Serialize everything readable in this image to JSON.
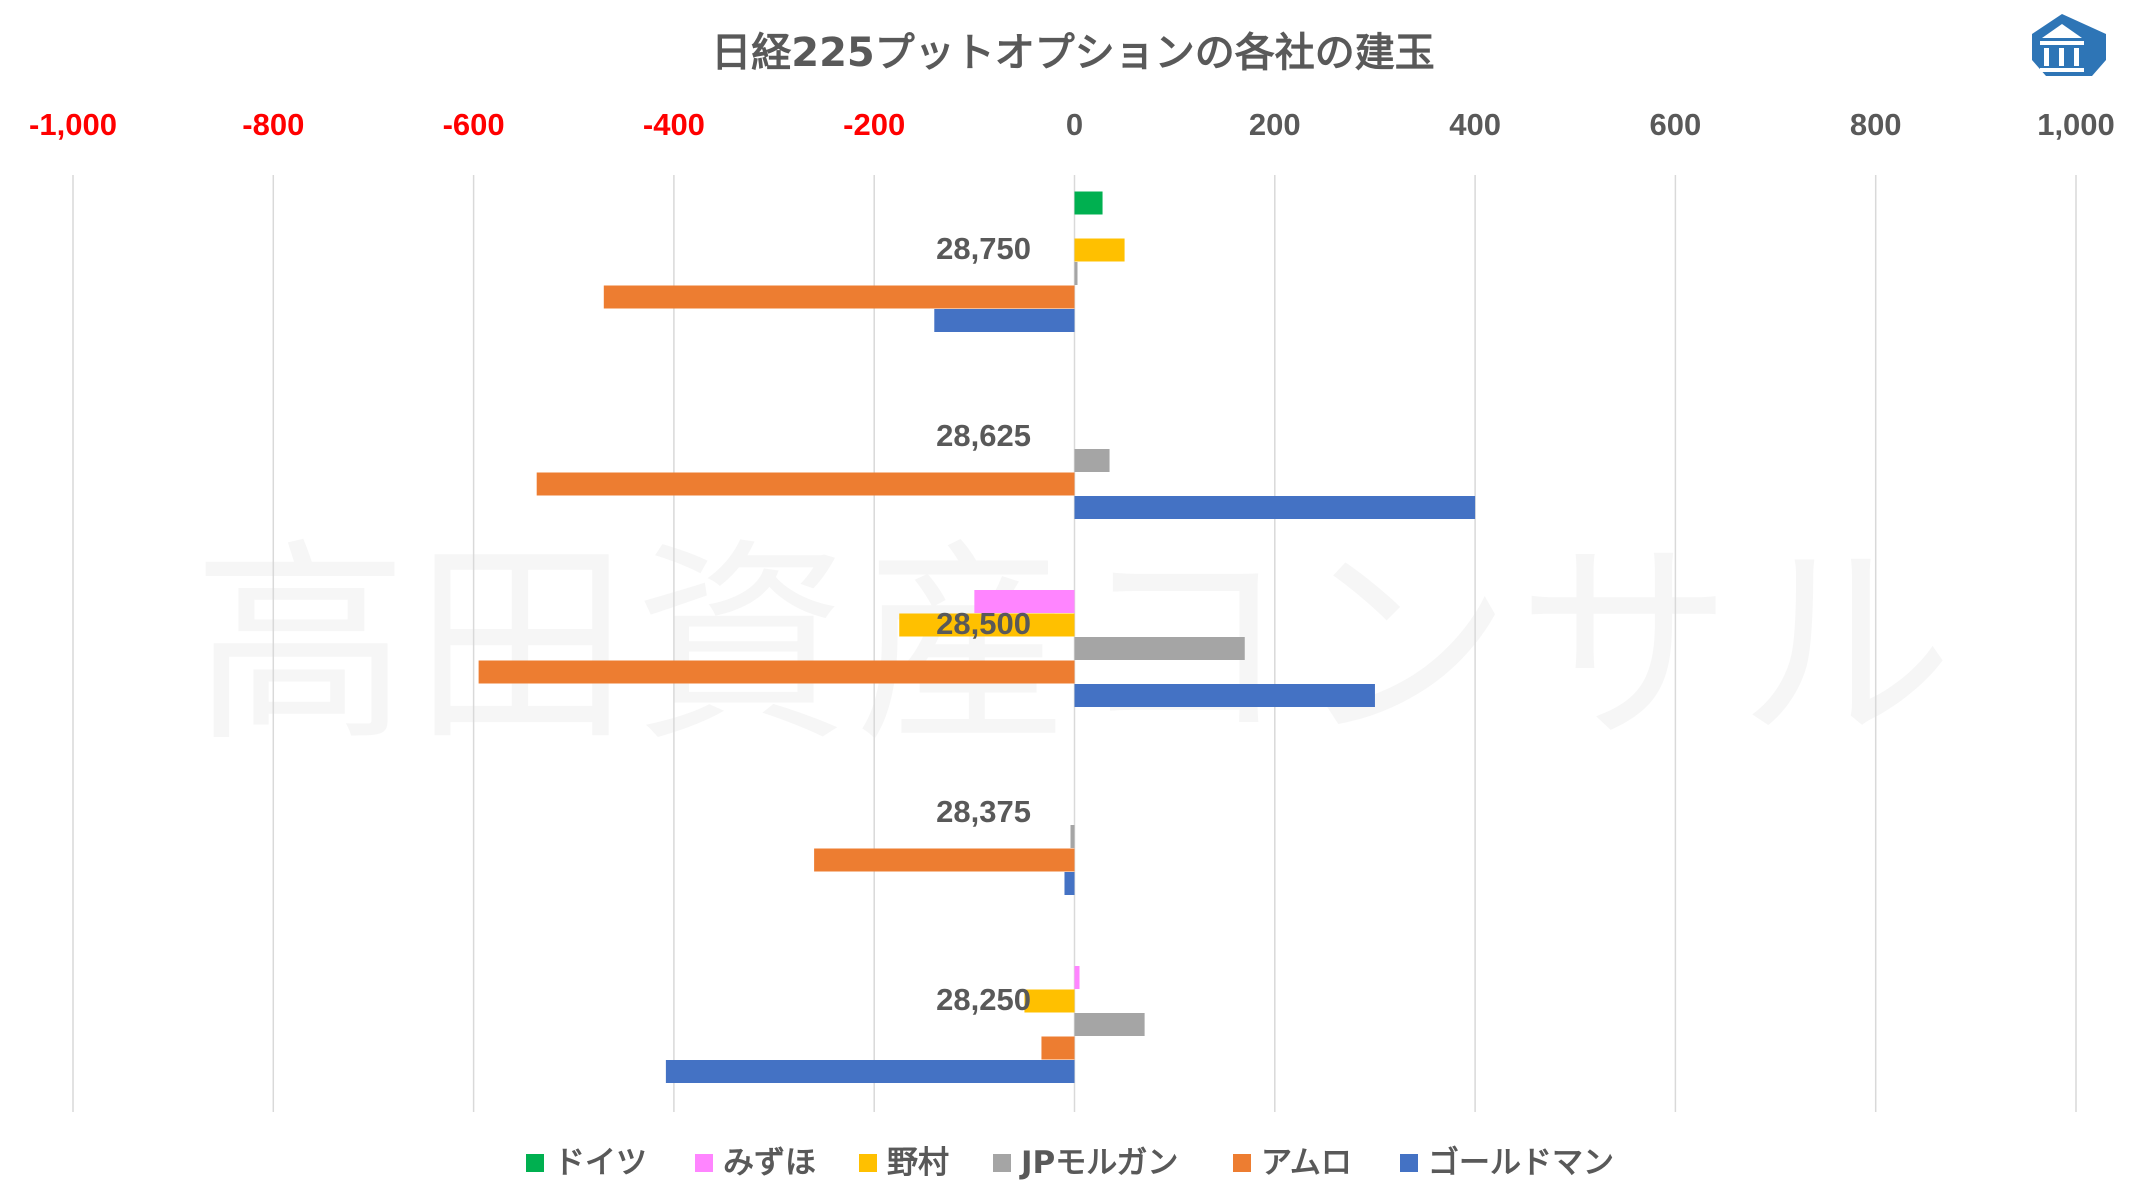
{
  "watermark": "高田資産コンサル",
  "logo_icon": "building-pillars-icon",
  "colors": {
    "negative_tick": "#FF0000",
    "positive_tick": "#595959",
    "grid": "#D9D9D9",
    "logo": "#2E75B6"
  },
  "chart_data": {
    "type": "bar",
    "orientation": "horizontal",
    "title": "日経225プットオプションの各社の建玉",
    "xlim": [
      -1000,
      1000
    ],
    "x_ticks": [
      -1000,
      -800,
      -600,
      -400,
      -200,
      0,
      200,
      400,
      600,
      800,
      1000
    ],
    "x_tick_labels": [
      "-1,000",
      "-800",
      "-600",
      "-400",
      "-200",
      "0",
      "200",
      "400",
      "600",
      "800",
      "1,000"
    ],
    "axis_position": "top",
    "grid": true,
    "legend_position": "bottom",
    "categories": [
      "28,750",
      "28,625",
      "28,500",
      "28,375",
      "28,250"
    ],
    "series": [
      {
        "name": "ドイツ",
        "color": "#00B050",
        "values": [
          28,
          0,
          0,
          0,
          0
        ]
      },
      {
        "name": "みずほ",
        "color": "#FF85FF",
        "values": [
          0,
          0,
          -100,
          0,
          5
        ]
      },
      {
        "name": "野村",
        "color": "#FFC000",
        "values": [
          50,
          0,
          -175,
          0,
          -50
        ]
      },
      {
        "name": "JPモルガン",
        "color": "#A5A5A5",
        "values": [
          3,
          35,
          170,
          -4,
          70
        ]
      },
      {
        "name": "アムロ",
        "color": "#ED7D31",
        "values": [
          -470,
          -537,
          -595,
          -260,
          -33
        ]
      },
      {
        "name": "ゴールドマン",
        "color": "#4472C4",
        "values": [
          -140,
          400,
          300,
          -10,
          -408
        ]
      }
    ]
  }
}
